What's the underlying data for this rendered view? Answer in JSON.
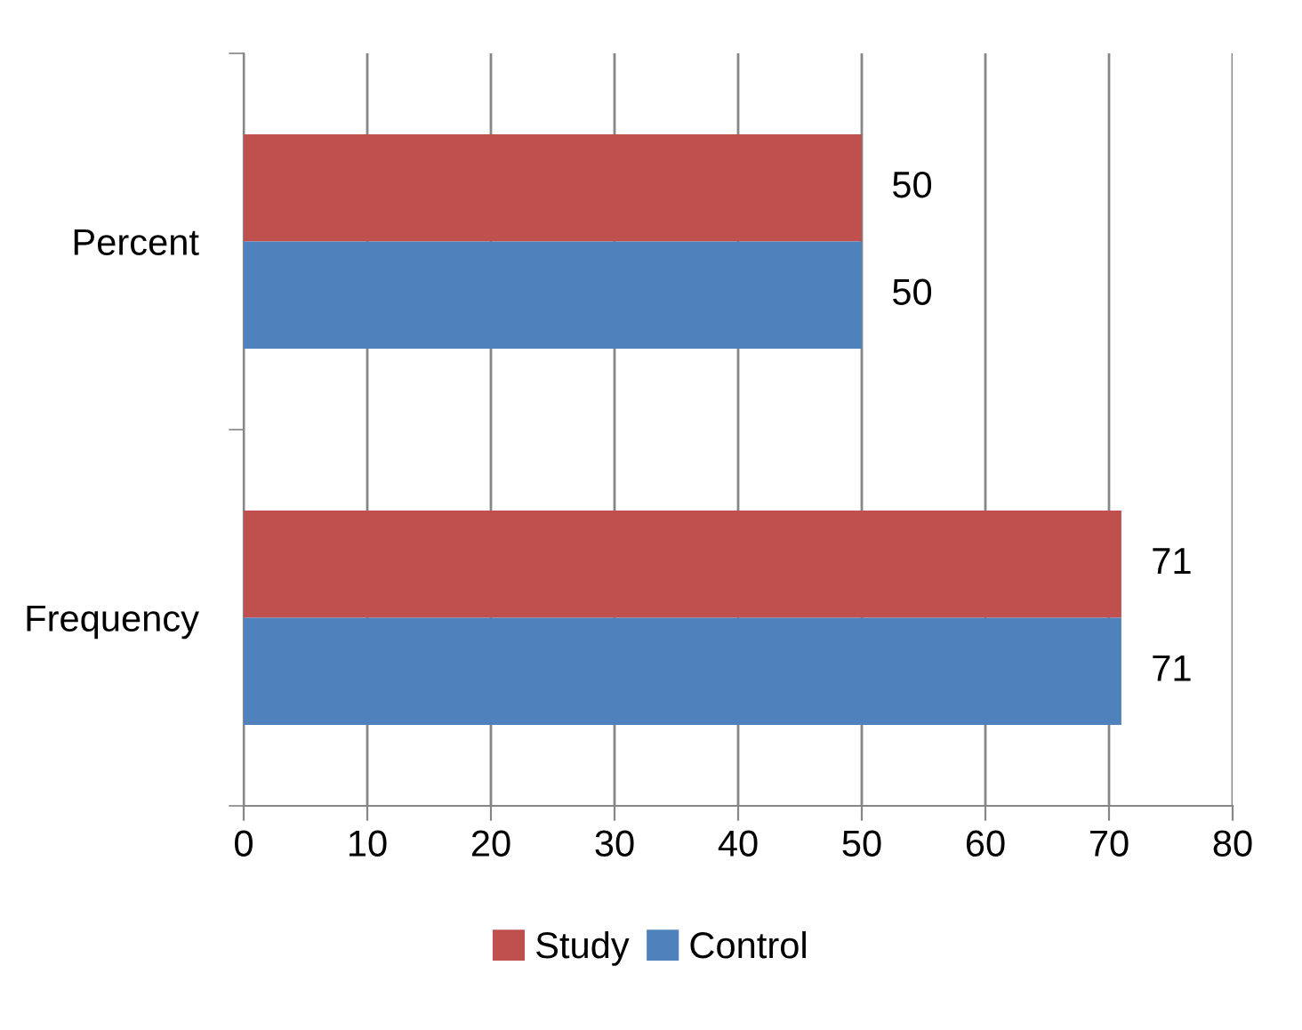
{
  "chart_data": {
    "type": "bar",
    "orientation": "horizontal",
    "categories": [
      "Percent",
      "Frequency"
    ],
    "series": [
      {
        "name": "Study",
        "color": "#c0504d",
        "values": [
          50,
          71
        ]
      },
      {
        "name": "Control",
        "color": "#4f81bd",
        "values": [
          50,
          71
        ]
      }
    ],
    "xlim": [
      0,
      80
    ],
    "xticks": [
      0,
      10,
      20,
      30,
      40,
      50,
      60,
      70,
      80
    ],
    "grid": "x",
    "legend": "bottom",
    "data_labels": true
  }
}
